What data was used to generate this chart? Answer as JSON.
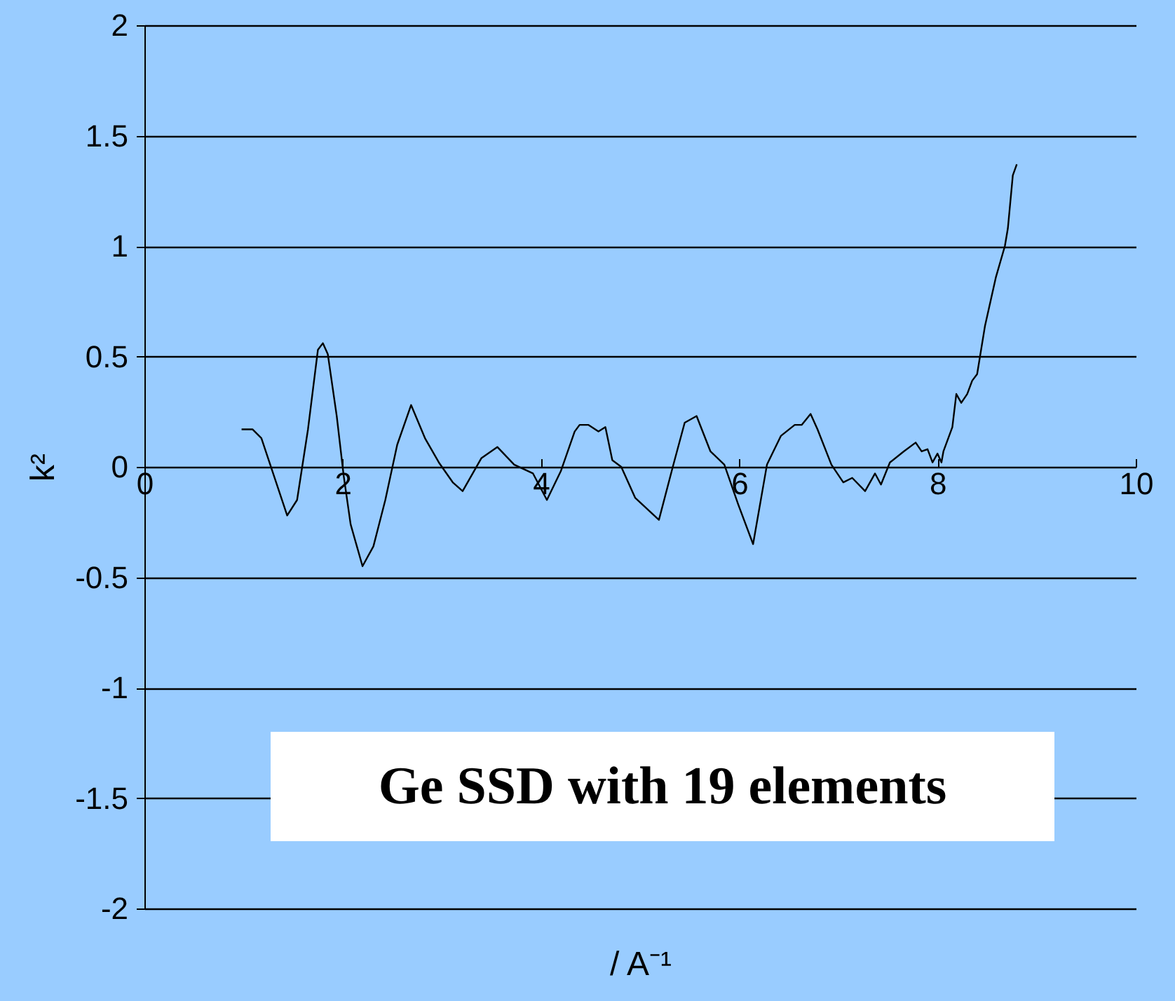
{
  "chart_data": {
    "type": "line",
    "xlabel": "/ A⁻¹",
    "ylabel": "k²",
    "annotations": [
      "Ge SSD with 19 elements"
    ],
    "xlim": [
      0,
      10
    ],
    "xticks": [
      0,
      2,
      4,
      6,
      8,
      10
    ],
    "ylim": [
      -2,
      2
    ],
    "yticks": [
      -2,
      -1.5,
      -1,
      -0.5,
      0,
      0.5,
      1,
      1.5,
      2
    ],
    "grid": "y",
    "series": [
      {
        "color": "#000000",
        "x": [
          0.98,
          1.09,
          1.18,
          1.44,
          1.54,
          1.65,
          1.75,
          1.8,
          1.85,
          1.94,
          2.01,
          2.08,
          2.2,
          2.31,
          2.43,
          2.55,
          2.69,
          2.83,
          2.97,
          3.11,
          3.21,
          3.4,
          3.56,
          3.73,
          3.92,
          4.06,
          4.2,
          4.34,
          4.39,
          4.48,
          4.58,
          4.65,
          4.72,
          4.81,
          4.95,
          5.19,
          5.33,
          5.45,
          5.57,
          5.71,
          5.85,
          5.99,
          6.14,
          6.28,
          6.42,
          6.56,
          6.63,
          6.72,
          6.79,
          6.93,
          7.05,
          7.14,
          7.27,
          7.37,
          7.43,
          7.52,
          7.66,
          7.78,
          7.84,
          7.9,
          7.95,
          8.0,
          8.04,
          8.06,
          8.15,
          8.19,
          8.24,
          8.3,
          8.35,
          8.4,
          8.48,
          8.59,
          8.68,
          8.71,
          8.76,
          8.8
        ],
        "values": [
          0.17,
          0.17,
          0.13,
          -0.22,
          -0.15,
          0.17,
          0.53,
          0.56,
          0.51,
          0.23,
          -0.04,
          -0.26,
          -0.45,
          -0.36,
          -0.15,
          0.1,
          0.28,
          0.13,
          0.02,
          -0.07,
          -0.11,
          0.04,
          0.09,
          0.01,
          -0.03,
          -0.15,
          -0.02,
          0.16,
          0.19,
          0.19,
          0.16,
          0.18,
          0.03,
          0.0,
          -0.14,
          -0.24,
          0.0,
          0.2,
          0.23,
          0.07,
          0.01,
          -0.17,
          -0.35,
          0.01,
          0.14,
          0.19,
          0.19,
          0.24,
          0.17,
          0.01,
          -0.07,
          -0.05,
          -0.11,
          -0.03,
          -0.08,
          0.02,
          0.07,
          0.11,
          0.07,
          0.08,
          0.02,
          0.06,
          0.02,
          0.07,
          0.18,
          0.33,
          0.29,
          0.33,
          0.39,
          0.42,
          0.64,
          0.86,
          1.0,
          1.08,
          1.32,
          1.37
        ]
      }
    ]
  }
}
